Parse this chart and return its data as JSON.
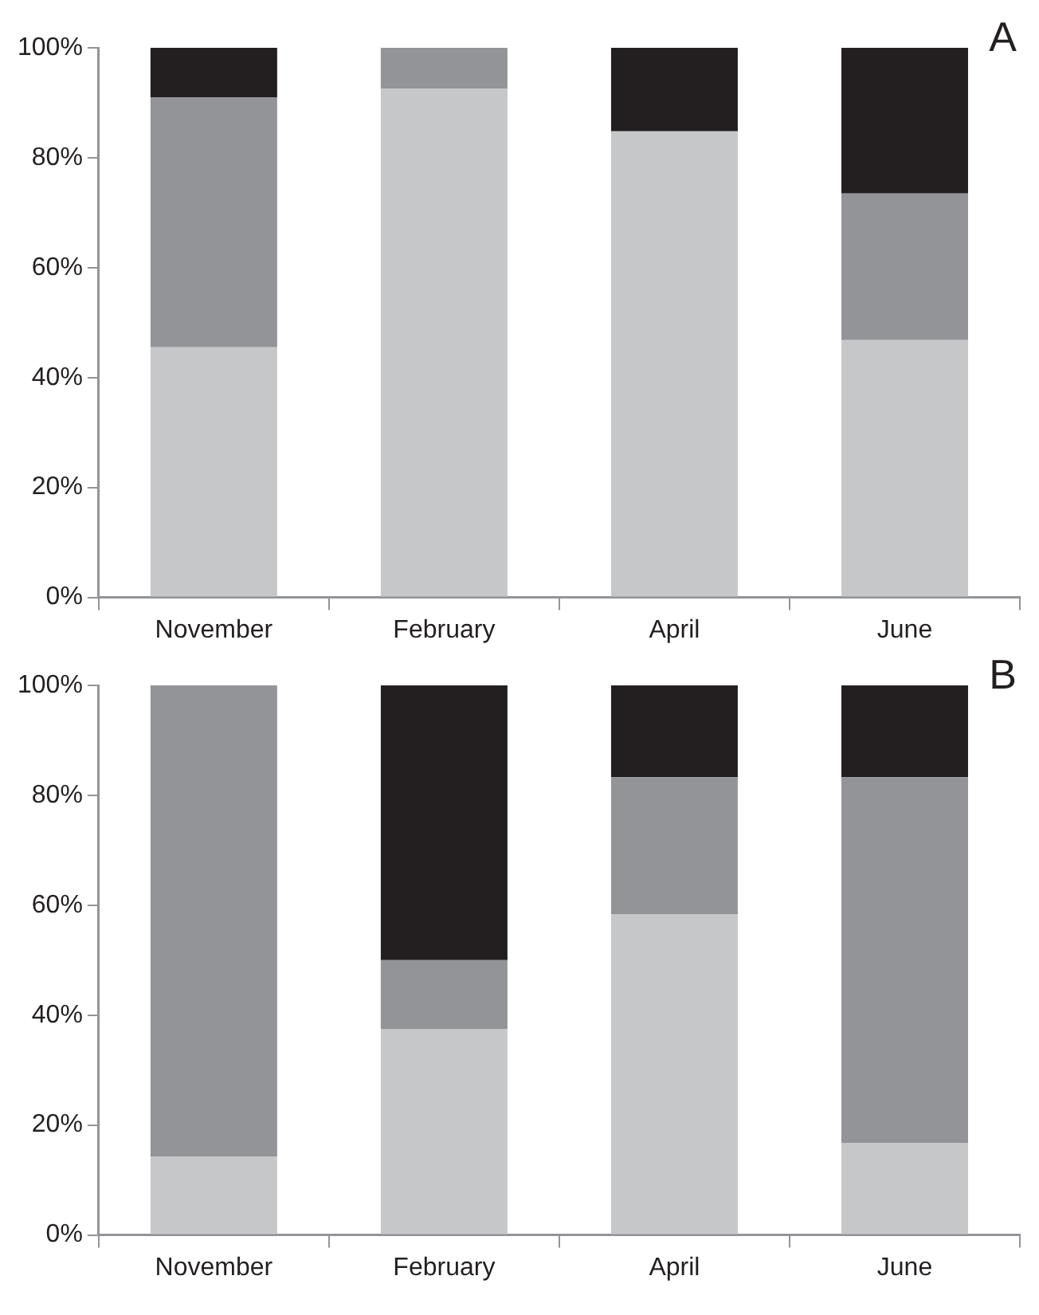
{
  "chart_data": [
    {
      "type": "bar",
      "stacked": true,
      "annotations": [
        "A"
      ],
      "categories": [
        "November",
        "February",
        "April",
        "June"
      ],
      "series": [
        {
          "color": "#c6c7c9",
          "values": [
            45.5,
            92.6,
            84.8,
            46.8
          ]
        },
        {
          "color": "#939498",
          "values": [
            45.5,
            7.4,
            0,
            26.7
          ]
        },
        {
          "color": "#231f20",
          "values": [
            9,
            0,
            15.2,
            26.5
          ]
        }
      ],
      "ylim": [
        0,
        100
      ],
      "yticks": [
        {
          "value": 0,
          "label": "0%"
        },
        {
          "value": 20,
          "label": "20%"
        },
        {
          "value": 40,
          "label": "40%"
        },
        {
          "value": 60,
          "label": "60%"
        },
        {
          "value": 80,
          "label": "80%"
        },
        {
          "value": 100,
          "label": "100%"
        }
      ],
      "grid": false,
      "legend": false
    },
    {
      "type": "bar",
      "stacked": true,
      "annotations": [
        "B"
      ],
      "categories": [
        "November",
        "February",
        "April",
        "June"
      ],
      "series": [
        {
          "color": "#c6c7c9",
          "values": [
            14.3,
            37.5,
            58.3,
            16.7
          ]
        },
        {
          "color": "#939498",
          "values": [
            85.7,
            12.5,
            25,
            66.6
          ]
        },
        {
          "color": "#231f20",
          "values": [
            0,
            50,
            16.7,
            16.7
          ]
        }
      ],
      "ylim": [
        0,
        100
      ],
      "yticks": [
        {
          "value": 0,
          "label": "0%"
        },
        {
          "value": 20,
          "label": "20%"
        },
        {
          "value": 40,
          "label": "40%"
        },
        {
          "value": 60,
          "label": "60%"
        },
        {
          "value": 80,
          "label": "80%"
        },
        {
          "value": 100,
          "label": "100%"
        }
      ],
      "grid": false,
      "legend": false
    }
  ]
}
